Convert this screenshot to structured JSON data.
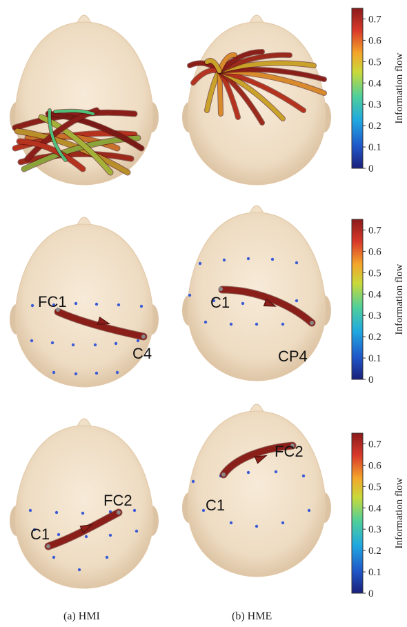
{
  "colorbar": {
    "title": "Information flow",
    "ticks": [
      "0",
      "0.1",
      "0.2",
      "0.3",
      "0.4",
      "0.5",
      "0.6",
      "0.7"
    ],
    "range": [
      0,
      0.75
    ],
    "colors": [
      "#1a1f7a",
      "#1f57c9",
      "#20a8e0",
      "#4fcf9a",
      "#c9d93a",
      "#f3a52a",
      "#d9392a",
      "#8b1a1a"
    ]
  },
  "colors": {
    "head": "#f1e0c8",
    "head_shade": "#dcc3a3",
    "arrow": "#8a1f1a",
    "electrode": "#3b5bd6"
  },
  "panels": [
    {
      "id": "a-top",
      "column": "a",
      "row": 1,
      "dense": true,
      "electrode_labels": []
    },
    {
      "id": "b-top",
      "column": "b",
      "row": 1,
      "dense": true,
      "electrode_labels": []
    },
    {
      "id": "a-mid",
      "column": "a",
      "row": 2,
      "electrode_labels": [
        {
          "text": "FC1"
        },
        {
          "text": "C4"
        }
      ],
      "flow": {
        "from": "FC1",
        "to": "C4",
        "value": 0.72
      }
    },
    {
      "id": "b-mid",
      "column": "b",
      "row": 2,
      "electrode_labels": [
        {
          "text": "C1"
        },
        {
          "text": "CP4"
        }
      ],
      "flow": {
        "from": "C1",
        "to": "CP4",
        "value": 0.72
      }
    },
    {
      "id": "a-bot",
      "column": "a",
      "row": 3,
      "electrode_labels": [
        {
          "text": "C1"
        },
        {
          "text": "FC2"
        }
      ],
      "flow": {
        "from": "C1",
        "to": "FC2",
        "value": 0.72
      }
    },
    {
      "id": "b-bot",
      "column": "b",
      "row": 3,
      "electrode_labels": [
        {
          "text": "C1"
        },
        {
          "text": "FC2"
        }
      ],
      "flow": {
        "from": "C1",
        "to": "FC2",
        "value": 0.72
      }
    }
  ],
  "captions": {
    "a": "(a)  HMI",
    "b": "(b)  HME"
  }
}
